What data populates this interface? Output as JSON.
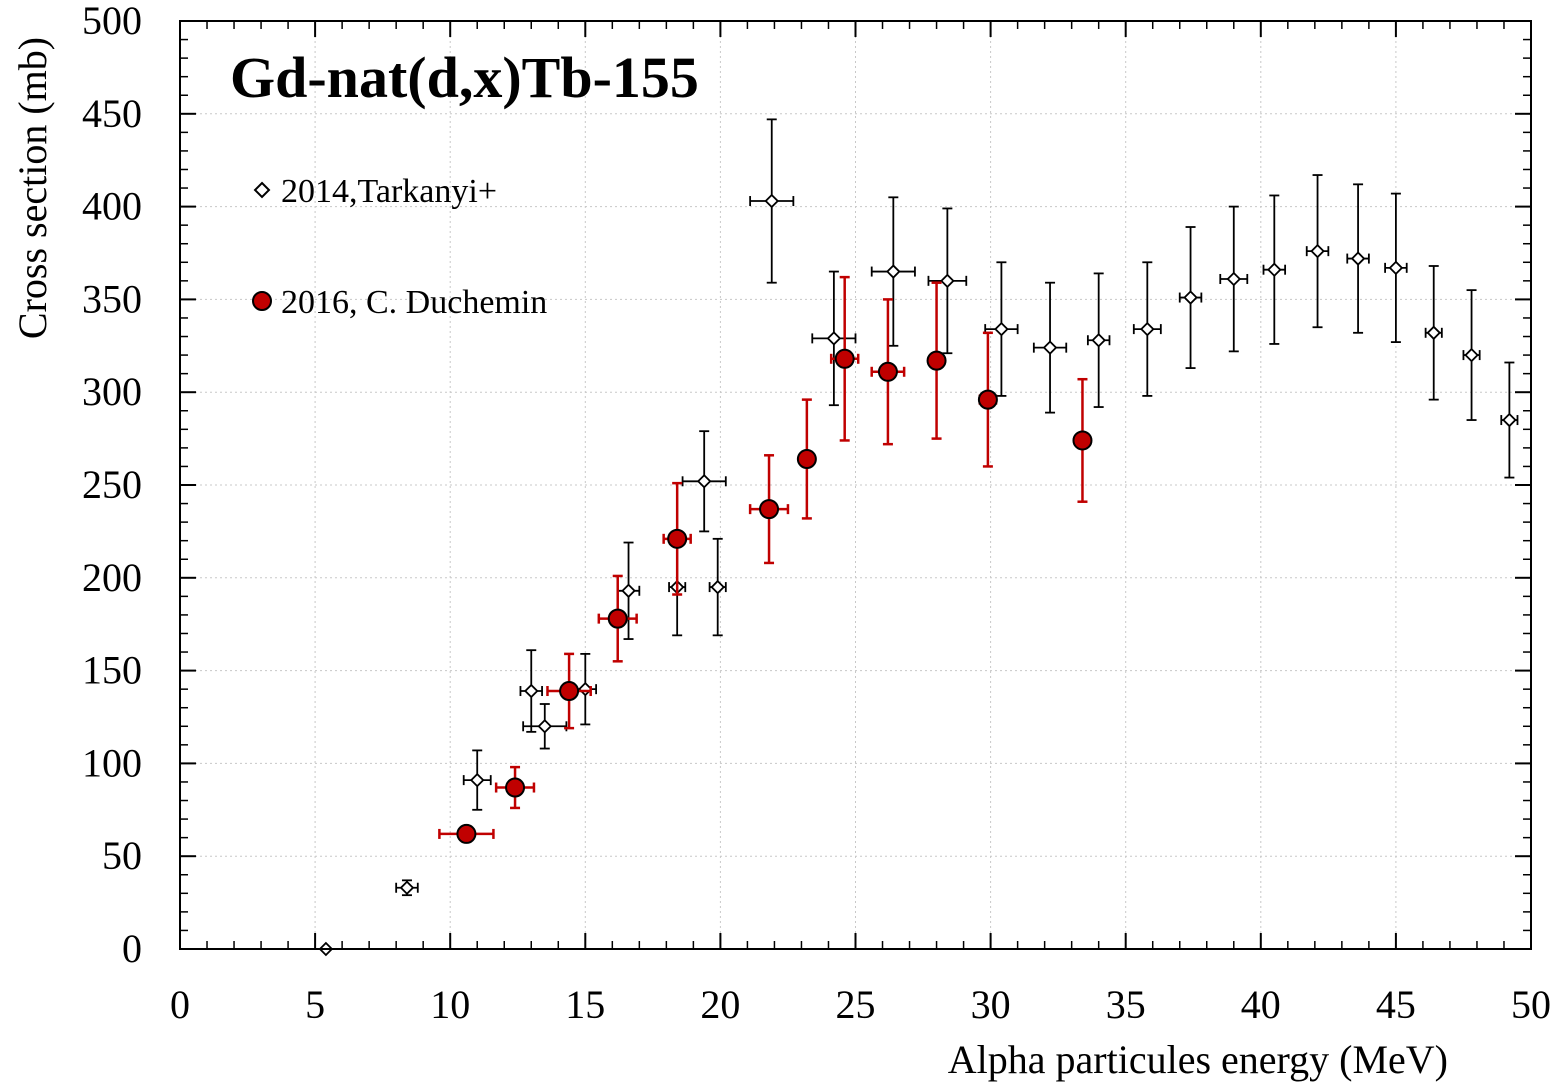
{
  "chart_data": {
    "type": "scatter",
    "title": "Gd-nat(d,x)Tb-155",
    "xlabel": "Alpha particules energy (MeV)",
    "ylabel": "Cross section (mb)",
    "xlim": [
      0,
      50
    ],
    "ylim": [
      0,
      500
    ],
    "x_ticks": [
      "0",
      "5",
      "10",
      "15",
      "20",
      "25",
      "30",
      "35",
      "40",
      "45",
      "50"
    ],
    "y_ticks": [
      "0",
      "50",
      "100",
      "150",
      "200",
      "250",
      "300",
      "350",
      "400",
      "450",
      "500"
    ],
    "grid": true,
    "legend_position": "top-left",
    "series": [
      {
        "name": "2014,Tarkanyi+",
        "marker": "open-diamond",
        "color": "#000000",
        "points": [
          {
            "x": 5.4,
            "y": 0,
            "xerr": 0,
            "yerr": 0
          },
          {
            "x": 8.4,
            "y": 33,
            "xerr": 0.4,
            "yerr": 4
          },
          {
            "x": 11.0,
            "y": 91,
            "xerr": 0.5,
            "yerr": 16
          },
          {
            "x": 13.0,
            "y": 139,
            "xerr": 0.4,
            "yerr": 22
          },
          {
            "x": 13.5,
            "y": 120,
            "xerr": 0.8,
            "yerr": 12
          },
          {
            "x": 15.0,
            "y": 140,
            "xerr": 0.4,
            "yerr": 19
          },
          {
            "x": 16.6,
            "y": 193,
            "xerr": 0.4,
            "yerr": 26
          },
          {
            "x": 18.4,
            "y": 195,
            "xerr": 0.3,
            "yerr": 26
          },
          {
            "x": 19.4,
            "y": 252,
            "xerr": 0.8,
            "yerr": 27
          },
          {
            "x": 19.9,
            "y": 195,
            "xerr": 0.3,
            "yerr": 26
          },
          {
            "x": 21.9,
            "y": 403,
            "xerr": 0.8,
            "yerr": 44
          },
          {
            "x": 24.2,
            "y": 329,
            "xerr": 0.8,
            "yerr": 36
          },
          {
            "x": 26.4,
            "y": 365,
            "xerr": 0.8,
            "yerr": 40
          },
          {
            "x": 28.4,
            "y": 360,
            "xerr": 0.7,
            "yerr": 39
          },
          {
            "x": 30.4,
            "y": 334,
            "xerr": 0.6,
            "yerr": 36
          },
          {
            "x": 32.2,
            "y": 324,
            "xerr": 0.6,
            "yerr": 35
          },
          {
            "x": 34.0,
            "y": 328,
            "xerr": 0.4,
            "yerr": 36
          },
          {
            "x": 35.8,
            "y": 334,
            "xerr": 0.5,
            "yerr": 36
          },
          {
            "x": 37.4,
            "y": 351,
            "xerr": 0.4,
            "yerr": 38
          },
          {
            "x": 39.0,
            "y": 361,
            "xerr": 0.5,
            "yerr": 39
          },
          {
            "x": 40.5,
            "y": 366,
            "xerr": 0.4,
            "yerr": 40
          },
          {
            "x": 42.1,
            "y": 376,
            "xerr": 0.4,
            "yerr": 41
          },
          {
            "x": 43.6,
            "y": 372,
            "xerr": 0.4,
            "yerr": 40
          },
          {
            "x": 45.0,
            "y": 367,
            "xerr": 0.4,
            "yerr": 40
          },
          {
            "x": 46.4,
            "y": 332,
            "xerr": 0.3,
            "yerr": 36
          },
          {
            "x": 47.8,
            "y": 320,
            "xerr": 0.3,
            "yerr": 35
          },
          {
            "x": 49.2,
            "y": 285,
            "xerr": 0.3,
            "yerr": 31
          }
        ]
      },
      {
        "name": "2016, C. Duchemin",
        "marker": "filled-circle",
        "color": "#c00000",
        "points": [
          {
            "x": 10.6,
            "y": 62,
            "xerr": 1.0,
            "yerr": 4
          },
          {
            "x": 12.4,
            "y": 87,
            "xerr": 0.7,
            "yerr": 11
          },
          {
            "x": 14.4,
            "y": 139,
            "xerr": 0.8,
            "yerr": 20
          },
          {
            "x": 16.2,
            "y": 178,
            "xerr": 0.7,
            "yerr": 23
          },
          {
            "x": 18.4,
            "y": 221,
            "xerr": 0.5,
            "yerr": 30
          },
          {
            "x": 21.8,
            "y": 237,
            "xerr": 0.7,
            "yerr": 29
          },
          {
            "x": 23.2,
            "y": 264,
            "xerr": 0,
            "yerr": 32
          },
          {
            "x": 24.6,
            "y": 318,
            "xerr": 0.5,
            "yerr": 44
          },
          {
            "x": 26.2,
            "y": 311,
            "xerr": 0.6,
            "yerr": 39
          },
          {
            "x": 28.0,
            "y": 317,
            "xerr": 0,
            "yerr": 42
          },
          {
            "x": 29.9,
            "y": 296,
            "xerr": 0.3,
            "yerr": 36
          },
          {
            "x": 33.4,
            "y": 274,
            "xerr": 0,
            "yerr": 33
          }
        ]
      }
    ]
  }
}
